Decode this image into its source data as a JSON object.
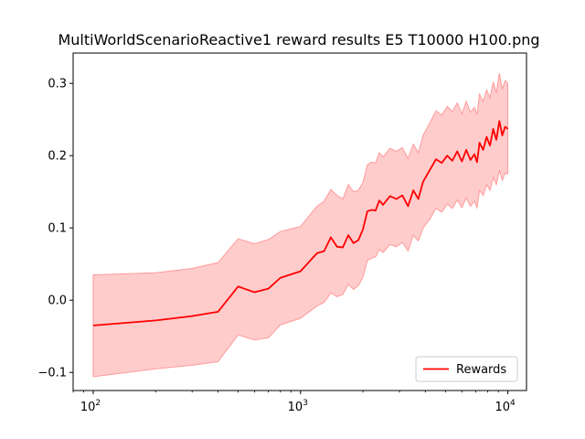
{
  "chart_data": {
    "type": "line",
    "title": "MultiWorldScenarioReactive1 reward results E5 T10000 H100.png",
    "xlabel": "",
    "ylabel": "",
    "xscale": "log",
    "xlim": [
      80,
      12300
    ],
    "ylim": [
      -0.125,
      0.342
    ],
    "x_ticks": [
      {
        "value": 100,
        "base": "10",
        "exp": "2"
      },
      {
        "value": 1000,
        "base": "10",
        "exp": "3"
      },
      {
        "value": 10000,
        "base": "10",
        "exp": "4"
      }
    ],
    "y_ticks": [
      {
        "value": -0.1,
        "label": "−0.1"
      },
      {
        "value": 0.0,
        "label": "0.0"
      },
      {
        "value": 0.1,
        "label": "0.1"
      },
      {
        "value": 0.2,
        "label": "0.2"
      },
      {
        "value": 0.3,
        "label": "0.3"
      }
    ],
    "grid": false,
    "legend": {
      "position": "bottom-right",
      "entries": [
        "Rewards"
      ]
    },
    "colors": {
      "line": "#ff0000",
      "band": "#ffcccc",
      "band_edge": "#ff9a9a"
    },
    "series": [
      {
        "name": "Rewards",
        "x": [
          100,
          200,
          300,
          400,
          500,
          600,
          700,
          800,
          1000,
          1200,
          1300,
          1400,
          1500,
          1600,
          1700,
          1800,
          1900,
          2000,
          2100,
          2200,
          2300,
          2400,
          2500,
          2700,
          2900,
          3100,
          3300,
          3500,
          3700,
          3900,
          4200,
          4500,
          4800,
          5100,
          5400,
          5700,
          6000,
          6300,
          6600,
          6900,
          7100,
          7300,
          7600,
          7900,
          8200,
          8500,
          8800,
          9100,
          9400,
          9700,
          10000
        ],
        "y": [
          -0.035,
          -0.028,
          -0.022,
          -0.016,
          0.019,
          0.011,
          0.016,
          0.031,
          0.04,
          0.065,
          0.068,
          0.087,
          0.074,
          0.073,
          0.09,
          0.079,
          0.083,
          0.098,
          0.123,
          0.125,
          0.124,
          0.138,
          0.132,
          0.144,
          0.14,
          0.145,
          0.13,
          0.152,
          0.14,
          0.164,
          0.18,
          0.195,
          0.19,
          0.2,
          0.193,
          0.206,
          0.192,
          0.208,
          0.194,
          0.202,
          0.191,
          0.218,
          0.208,
          0.226,
          0.214,
          0.237,
          0.222,
          0.248,
          0.228,
          0.24,
          0.237
        ],
        "lower": [
          -0.106,
          -0.095,
          -0.09,
          -0.085,
          -0.048,
          -0.055,
          -0.052,
          -0.034,
          -0.025,
          -0.008,
          -0.003,
          0.01,
          0.005,
          0.008,
          0.022,
          0.015,
          0.02,
          0.032,
          0.055,
          0.058,
          0.06,
          0.07,
          0.066,
          0.077,
          0.074,
          0.08,
          0.068,
          0.09,
          0.082,
          0.1,
          0.112,
          0.127,
          0.122,
          0.133,
          0.127,
          0.139,
          0.128,
          0.142,
          0.13,
          0.137,
          0.128,
          0.152,
          0.145,
          0.16,
          0.152,
          0.17,
          0.16,
          0.18,
          0.166,
          0.176,
          0.175
        ],
        "upper": [
          0.035,
          0.038,
          0.044,
          0.052,
          0.085,
          0.078,
          0.084,
          0.095,
          0.102,
          0.13,
          0.137,
          0.153,
          0.145,
          0.14,
          0.16,
          0.15,
          0.152,
          0.163,
          0.187,
          0.191,
          0.19,
          0.204,
          0.198,
          0.21,
          0.206,
          0.211,
          0.196,
          0.216,
          0.204,
          0.228,
          0.245,
          0.262,
          0.256,
          0.268,
          0.261,
          0.273,
          0.258,
          0.275,
          0.26,
          0.267,
          0.257,
          0.285,
          0.275,
          0.291,
          0.28,
          0.302,
          0.287,
          0.314,
          0.292,
          0.304,
          0.3
        ]
      }
    ]
  }
}
